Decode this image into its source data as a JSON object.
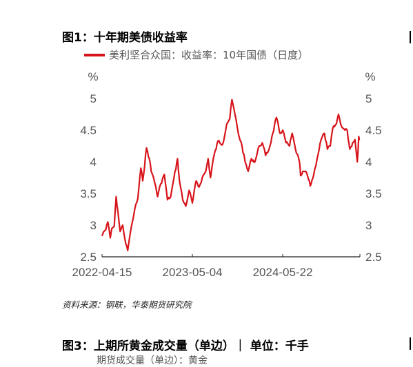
{
  "figure1": {
    "title": "图1：十年期美债收益率",
    "legend_label": "美利坚合众国：收益率：10年国债（日度）",
    "source": "资料来源：钢联，华泰期货研究院"
  },
  "figure3": {
    "title": "图3：上期所黄金成交量（单边）｜  单位：千手",
    "legend_label": "期货成交量（单边）：黄金"
  },
  "chart_data": {
    "type": "line",
    "title": "图1：十年期美债收益率",
    "xlabel": "",
    "ylabel": "%",
    "y_unit_left": "%",
    "y_unit_right": "%",
    "ylim": [
      2.5,
      5
    ],
    "y_ticks": [
      "2.5",
      "3",
      "3.5",
      "4",
      "4.5",
      "5"
    ],
    "x_ticks": [
      "2022-04-15",
      "2023-05-04",
      "2024-05-22"
    ],
    "x_range": [
      "2022-04-15",
      "2025-04-15"
    ],
    "grid": false,
    "legend_position": "top-left",
    "color": "#d7141a",
    "series": [
      {
        "name": "美利坚合众国：收益率：10年国债（日度）",
        "points": [
          [
            "2022-04-15",
            2.83
          ],
          [
            "2022-04-22",
            2.9
          ],
          [
            "2022-05-01",
            2.93
          ],
          [
            "2022-05-10",
            3.05
          ],
          [
            "2022-05-20",
            2.8
          ],
          [
            "2022-05-27",
            2.95
          ],
          [
            "2022-06-06",
            2.98
          ],
          [
            "2022-06-14",
            3.45
          ],
          [
            "2022-06-22",
            3.2
          ],
          [
            "2022-07-01",
            2.9
          ],
          [
            "2022-07-12",
            3.0
          ],
          [
            "2022-07-25",
            2.7
          ],
          [
            "2022-08-02",
            2.6
          ],
          [
            "2022-08-12",
            2.85
          ],
          [
            "2022-08-22",
            3.05
          ],
          [
            "2022-09-01",
            3.25
          ],
          [
            "2022-09-14",
            3.42
          ],
          [
            "2022-09-27",
            3.9
          ],
          [
            "2022-10-05",
            3.7
          ],
          [
            "2022-10-21",
            4.22
          ],
          [
            "2022-11-02",
            4.05
          ],
          [
            "2022-11-10",
            3.85
          ],
          [
            "2022-11-20",
            3.75
          ],
          [
            "2022-11-30",
            3.6
          ],
          [
            "2022-12-07",
            3.45
          ],
          [
            "2022-12-20",
            3.65
          ],
          [
            "2023-01-05",
            3.8
          ],
          [
            "2023-01-18",
            3.4
          ],
          [
            "2023-02-01",
            3.45
          ],
          [
            "2023-02-15",
            3.75
          ],
          [
            "2023-03-02",
            4.05
          ],
          [
            "2023-03-10",
            3.7
          ],
          [
            "2023-03-24",
            3.4
          ],
          [
            "2023-04-06",
            3.3
          ],
          [
            "2023-04-20",
            3.55
          ],
          [
            "2023-05-04",
            3.35
          ],
          [
            "2023-05-20",
            3.7
          ],
          [
            "2023-06-01",
            3.6
          ],
          [
            "2023-06-15",
            3.75
          ],
          [
            "2023-06-30",
            3.85
          ],
          [
            "2023-07-10",
            4.05
          ],
          [
            "2023-07-20",
            3.75
          ],
          [
            "2023-08-01",
            4.05
          ],
          [
            "2023-08-21",
            4.33
          ],
          [
            "2023-09-10",
            4.28
          ],
          [
            "2023-09-27",
            4.6
          ],
          [
            "2023-10-10",
            4.68
          ],
          [
            "2023-10-19",
            4.98
          ],
          [
            "2023-11-01",
            4.75
          ],
          [
            "2023-11-15",
            4.45
          ],
          [
            "2023-12-01",
            4.25
          ],
          [
            "2023-12-14",
            4.0
          ],
          [
            "2023-12-27",
            3.85
          ],
          [
            "2024-01-10",
            4.05
          ],
          [
            "2024-01-25",
            4.0
          ],
          [
            "2024-02-12",
            4.25
          ],
          [
            "2024-02-25",
            4.3
          ],
          [
            "2024-03-10",
            4.1
          ],
          [
            "2024-03-25",
            4.2
          ],
          [
            "2024-04-10",
            4.45
          ],
          [
            "2024-04-25",
            4.7
          ],
          [
            "2024-05-10",
            4.45
          ],
          [
            "2024-05-22",
            4.5
          ],
          [
            "2024-06-05",
            4.3
          ],
          [
            "2024-06-20",
            4.25
          ],
          [
            "2024-07-01",
            4.45
          ],
          [
            "2024-07-15",
            4.2
          ],
          [
            "2024-08-01",
            4.0
          ],
          [
            "2024-08-06",
            3.78
          ],
          [
            "2024-08-20",
            3.85
          ],
          [
            "2024-09-01",
            3.82
          ],
          [
            "2024-09-16",
            3.62
          ],
          [
            "2024-10-01",
            3.8
          ],
          [
            "2024-10-15",
            4.05
          ],
          [
            "2024-11-01",
            4.35
          ],
          [
            "2024-11-15",
            4.45
          ],
          [
            "2024-11-28",
            4.2
          ],
          [
            "2024-12-10",
            4.25
          ],
          [
            "2024-12-20",
            4.52
          ],
          [
            "2025-01-05",
            4.6
          ],
          [
            "2025-01-14",
            4.75
          ],
          [
            "2025-01-28",
            4.55
          ],
          [
            "2025-02-10",
            4.5
          ],
          [
            "2025-02-20",
            4.5
          ],
          [
            "2025-03-03",
            4.2
          ],
          [
            "2025-03-15",
            4.3
          ],
          [
            "2025-03-25",
            4.35
          ],
          [
            "2025-04-04",
            4.0
          ],
          [
            "2025-04-10",
            4.4
          ],
          [
            "2025-04-15",
            4.35
          ]
        ]
      }
    ]
  }
}
